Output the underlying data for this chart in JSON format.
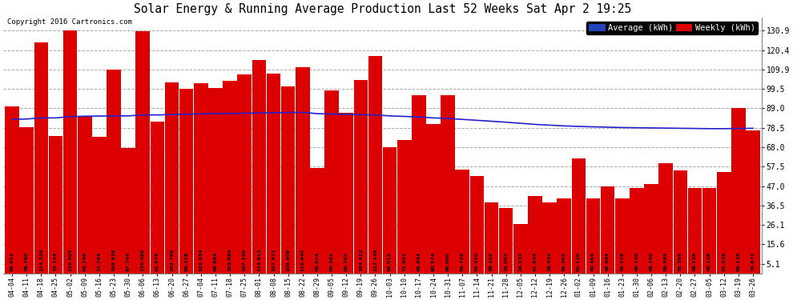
{
  "title": "Solar Energy & Running Average Production Last 52 Weeks Sat Apr 2 19:25",
  "copyright": "Copyright 2016 Cartronics.com",
  "legend_avg": "Average (kWh)",
  "legend_weekly": "Weekly (kWh)",
  "bar_color": "#dd0000",
  "avg_line_color": "#2222cc",
  "background_color": "#ffffff",
  "plot_bg_color": "#ffffff",
  "yticks": [
    5.1,
    15.6,
    26.1,
    36.5,
    47.0,
    57.5,
    68.0,
    78.5,
    89.0,
    99.5,
    109.9,
    120.4,
    130.9
  ],
  "categories": [
    "04-04",
    "04-11",
    "04-18",
    "04-25",
    "05-02",
    "05-09",
    "05-16",
    "05-23",
    "05-30",
    "06-06",
    "06-13",
    "06-20",
    "06-27",
    "07-04",
    "07-11",
    "07-18",
    "07-25",
    "08-01",
    "08-08",
    "08-15",
    "08-22",
    "08-29",
    "09-05",
    "09-12",
    "09-19",
    "09-26",
    "10-03",
    "10-10",
    "10-17",
    "10-24",
    "10-31",
    "11-07",
    "11-14",
    "11-21",
    "11-28",
    "12-05",
    "12-12",
    "12-19",
    "12-26",
    "01-02",
    "01-09",
    "01-16",
    "01-23",
    "01-30",
    "02-06",
    "02-13",
    "02-20",
    "02-27",
    "03-05",
    "03-12",
    "03-19",
    "03-26"
  ],
  "bar_labels": [
    "89.912",
    "78.780",
    "124.328",
    "74.144",
    "130.904",
    "84.796",
    "73.784",
    "109.936",
    "67.744",
    "130.588",
    "81.878",
    "102.766",
    "99.318",
    "102.634",
    "99.884",
    "103.894",
    "107.190",
    "114.912",
    "107.472",
    "100.808",
    "110.940",
    "56.914",
    "98.562",
    "86.762",
    "104.422",
    "117.146",
    "68.012",
    "71.941",
    "95.954",
    "80.574",
    "96.000",
    "55.728",
    "52.310",
    "38.102",
    "35.062",
    "26.532",
    "41.834",
    "38.432",
    "40.302",
    "62.120",
    "40.364",
    "46.964",
    "40.278",
    "46.130",
    "48.150",
    "59.364",
    "55.364",
    "46.136",
    "46.128",
    "54.536",
    "89.128",
    "76.872"
  ],
  "weekly_values": [
    89.912,
    78.78,
    124.328,
    74.144,
    130.904,
    84.796,
    73.784,
    109.936,
    67.744,
    130.588,
    81.878,
    102.766,
    99.318,
    102.634,
    99.884,
    103.894,
    107.19,
    114.912,
    107.472,
    100.808,
    110.94,
    56.914,
    98.562,
    86.762,
    104.422,
    117.146,
    68.012,
    71.941,
    95.954,
    80.574,
    96.0,
    55.728,
    52.31,
    38.102,
    35.062,
    26.532,
    41.834,
    38.432,
    40.302,
    62.12,
    40.364,
    46.964,
    40.278,
    46.13,
    48.15,
    59.364,
    55.364,
    46.136,
    46.128,
    54.536,
    89.128,
    76.872
  ],
  "avg_values": [
    83.0,
    83.2,
    83.8,
    83.8,
    84.5,
    84.7,
    84.8,
    84.9,
    84.9,
    85.4,
    85.4,
    85.6,
    85.8,
    86.0,
    86.1,
    86.2,
    86.3,
    86.5,
    86.6,
    86.7,
    86.8,
    86.1,
    85.9,
    85.7,
    85.5,
    85.4,
    84.9,
    84.6,
    84.3,
    83.8,
    83.5,
    83.0,
    82.5,
    82.0,
    81.5,
    80.9,
    80.3,
    79.9,
    79.5,
    79.2,
    79.0,
    78.8,
    78.6,
    78.5,
    78.4,
    78.3,
    78.2,
    78.1,
    78.0,
    78.0,
    78.1,
    78.2
  ]
}
